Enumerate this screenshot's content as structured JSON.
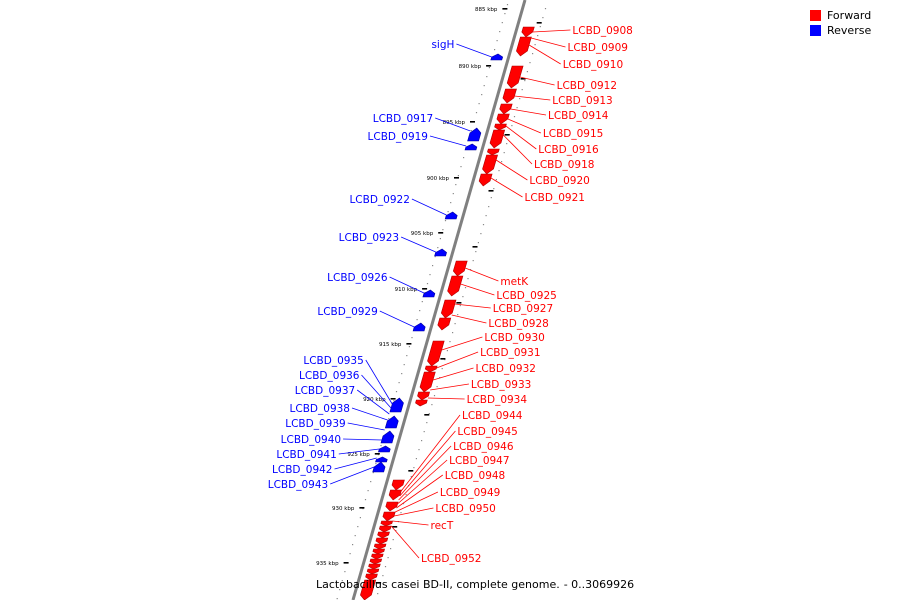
{
  "legend": {
    "forward": {
      "label": "Forward",
      "color": "#ff0000"
    },
    "reverse": {
      "label": "Reverse",
      "color": "#0000ff"
    }
  },
  "caption": {
    "organism": "Lactobacillus casei BD-II, complete genome.",
    "range": "- 0..3069926"
  },
  "axis": {
    "line_color": "#808080",
    "tick_labels": [
      "885 kbp",
      "890 kbp",
      "895 kbp",
      "900 kbp",
      "905 kbp",
      "910 kbp",
      "915 kbp",
      "920 kbp",
      "925 kbp",
      "930 kbp",
      "935 kbp"
    ]
  },
  "forward_genes": [
    "LCBD_0908",
    "LCBD_0909",
    "LCBD_0910",
    "LCBD_0912",
    "LCBD_0913",
    "LCBD_0914",
    "LCBD_0915",
    "LCBD_0916",
    "LCBD_0918",
    "LCBD_0920",
    "LCBD_0921",
    "metK",
    "LCBD_0925",
    "LCBD_0927",
    "LCBD_0928",
    "LCBD_0930",
    "LCBD_0931",
    "LCBD_0932",
    "LCBD_0933",
    "LCBD_0934",
    "LCBD_0944",
    "LCBD_0945",
    "LCBD_0946",
    "LCBD_0947",
    "LCBD_0948",
    "LCBD_0949",
    "LCBD_0950",
    "recT",
    "LCBD_0952"
  ],
  "reverse_genes": [
    "sigH",
    "LCBD_0917",
    "LCBD_0919",
    "LCBD_0922",
    "LCBD_0923",
    "LCBD_0926",
    "LCBD_0929",
    "LCBD_0935",
    "LCBD_0936",
    "LCBD_0937",
    "LCBD_0938",
    "LCBD_0939",
    "LCBD_0940",
    "LCBD_0941",
    "LCBD_0942",
    "LCBD_0943"
  ]
}
